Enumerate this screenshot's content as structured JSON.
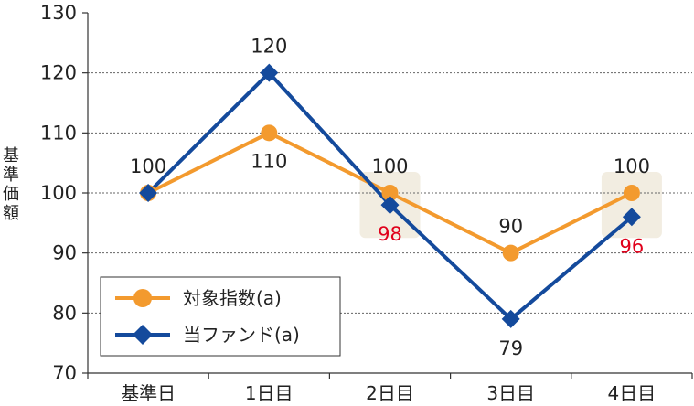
{
  "chart_data": {
    "type": "line",
    "ylabel": "基準価額",
    "ylim": [
      70,
      130
    ],
    "yticks": [
      70,
      80,
      90,
      100,
      110,
      120,
      130
    ],
    "categories": [
      "基準日",
      "1日目",
      "2日目",
      "3日目",
      "4日目"
    ],
    "grid": "horizontal-dotted",
    "legend_position": "bottom-left",
    "series": [
      {
        "name": "対象指数(a)",
        "color": "#F39A2E",
        "marker": "circle",
        "values": [
          100,
          110,
          100,
          90,
          100
        ],
        "labels": [
          "100",
          "110",
          "100",
          "90",
          "100"
        ],
        "label_color": "#222222"
      },
      {
        "name": "当ファンド(a)",
        "color": "#144A9C",
        "marker": "diamond",
        "values": [
          100,
          120,
          98,
          79,
          96
        ],
        "labels": [
          "",
          "120",
          "98",
          "79",
          "96"
        ],
        "label_colors": [
          "#222222",
          "#222222",
          "#E0001B",
          "#222222",
          "#E0001B"
        ]
      }
    ],
    "highlight_categories": [
      "2日目",
      "4日目"
    ],
    "highlight_color": "#F2EDE1"
  }
}
